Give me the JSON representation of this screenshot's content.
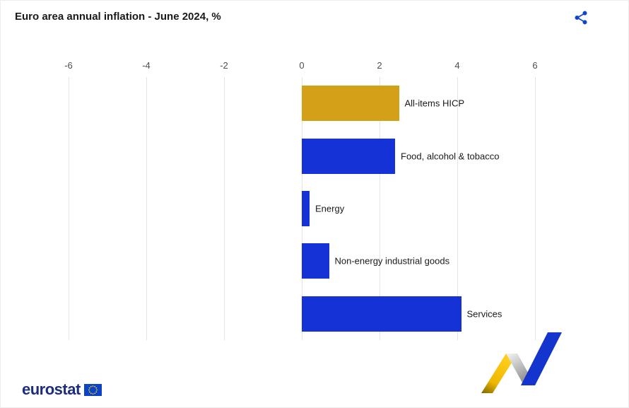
{
  "header": {
    "title": "Euro area annual inflation - June 2024, %"
  },
  "share": {
    "icon": "share-icon",
    "color": "#0E47CB"
  },
  "chart_data": {
    "type": "bar",
    "orientation": "horizontal",
    "title": "Euro area annual inflation - June 2024, %",
    "categories": [
      "All-items HICP",
      "Food, alcohol & tobacco",
      "Energy",
      "Non-energy industrial goods",
      "Services"
    ],
    "values": [
      2.5,
      2.4,
      0.2,
      0.7,
      4.1
    ],
    "colors": [
      "#D4A017",
      "#1532D6",
      "#1532D6",
      "#1532D6",
      "#1532D6"
    ],
    "x_ticks": [
      -6,
      -4,
      -2,
      0,
      2,
      4,
      6
    ],
    "xlim": [
      -6,
      6
    ],
    "grid": "vertical",
    "legend": "none",
    "unit": "%"
  },
  "footer": {
    "brand": "eurostat",
    "brand_color": "#1c2e7b",
    "flag_blue": "#0b43c4",
    "flag_star_yellow": "#FFD617",
    "logo_gold": "#EFB700",
    "logo_blue": "#1434CE"
  }
}
